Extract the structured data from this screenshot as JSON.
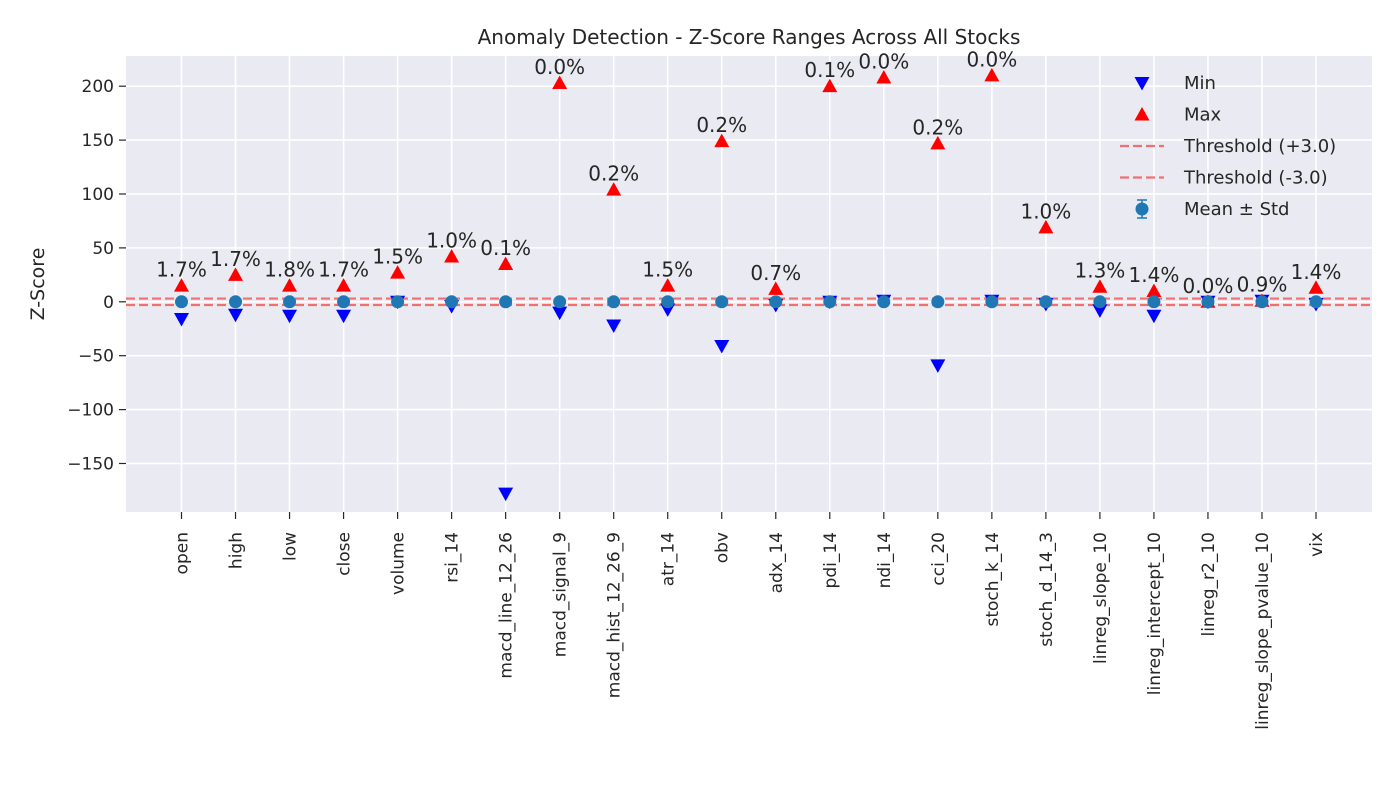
{
  "chart_data": {
    "type": "scatter",
    "title": "Anomaly Detection - Z-Score Ranges Across All Stocks",
    "xlabel": "",
    "ylabel": "Z-Score",
    "ylim": [
      -195,
      228
    ],
    "yticks": [
      200,
      150,
      100,
      50,
      0,
      -50,
      -100,
      -150
    ],
    "ytick_labels": [
      "200",
      "150",
      "100",
      "50",
      "0",
      "−50",
      "−100",
      "−150"
    ],
    "grid": true,
    "legend_position": "top-right",
    "categories": [
      "open",
      "high",
      "low",
      "close",
      "volume",
      "rsi_14",
      "macd_line_12_26",
      "macd_signal_9",
      "macd_hist_12_26_9",
      "atr_14",
      "obv",
      "adx_14",
      "pdi_14",
      "ndi_14",
      "cci_20",
      "stoch_k_14",
      "stoch_d_14_3",
      "linreg_slope_10",
      "linreg_intercept_10",
      "linreg_r2_10",
      "linreg_slope_pvalue_10",
      "vix"
    ],
    "series": [
      {
        "name": "Min",
        "marker": "triangle-down",
        "color": "#0000ff",
        "values": [
          -16,
          -12,
          -13,
          -13,
          0,
          -4,
          -178,
          -10,
          -22,
          -7,
          -41,
          -3,
          0,
          1,
          -59,
          1,
          -2,
          -8,
          -13,
          0,
          1,
          -2
        ]
      },
      {
        "name": "Max",
        "marker": "triangle-up",
        "color": "#ff0000",
        "values": [
          15,
          25,
          15,
          15,
          27,
          42,
          35,
          203,
          104,
          15,
          149,
          12,
          200,
          208,
          147,
          210,
          69,
          14,
          10,
          0,
          1,
          13
        ]
      },
      {
        "name": "Mean ± Std",
        "marker": "circle",
        "color": "#1f77b4",
        "values": [
          0,
          0,
          0,
          0,
          0,
          0,
          0,
          0,
          0,
          0,
          0,
          0,
          0,
          0,
          0,
          0,
          0,
          0,
          0,
          0,
          0,
          0
        ],
        "std": [
          1,
          1,
          1,
          1,
          1,
          1,
          1,
          1,
          1,
          1,
          1,
          1,
          1,
          1,
          1,
          1,
          1,
          1,
          1,
          1,
          1,
          1
        ]
      }
    ],
    "thresholds": [
      {
        "name": "Threshold (+3.0)",
        "value": 3.0,
        "color": "#f07070"
      },
      {
        "name": "Threshold (-3.0)",
        "value": -3.0,
        "color": "#f07070"
      }
    ],
    "annotations": [
      "1.7%",
      "1.7%",
      "1.8%",
      "1.7%",
      "1.5%",
      "1.0%",
      "0.1%",
      "0.0%",
      "0.2%",
      "1.5%",
      "0.2%",
      "0.7%",
      "0.1%",
      "0.0%",
      "0.2%",
      "0.0%",
      "1.0%",
      "1.3%",
      "1.4%",
      "0.0%",
      "0.9%",
      "1.4%"
    ],
    "colors": {
      "plot_background": "#eaeaf2",
      "grid": "#ffffff",
      "min": "#0000ff",
      "max": "#ff0000",
      "mean": "#1f77b4",
      "threshold": "#f07070"
    }
  }
}
